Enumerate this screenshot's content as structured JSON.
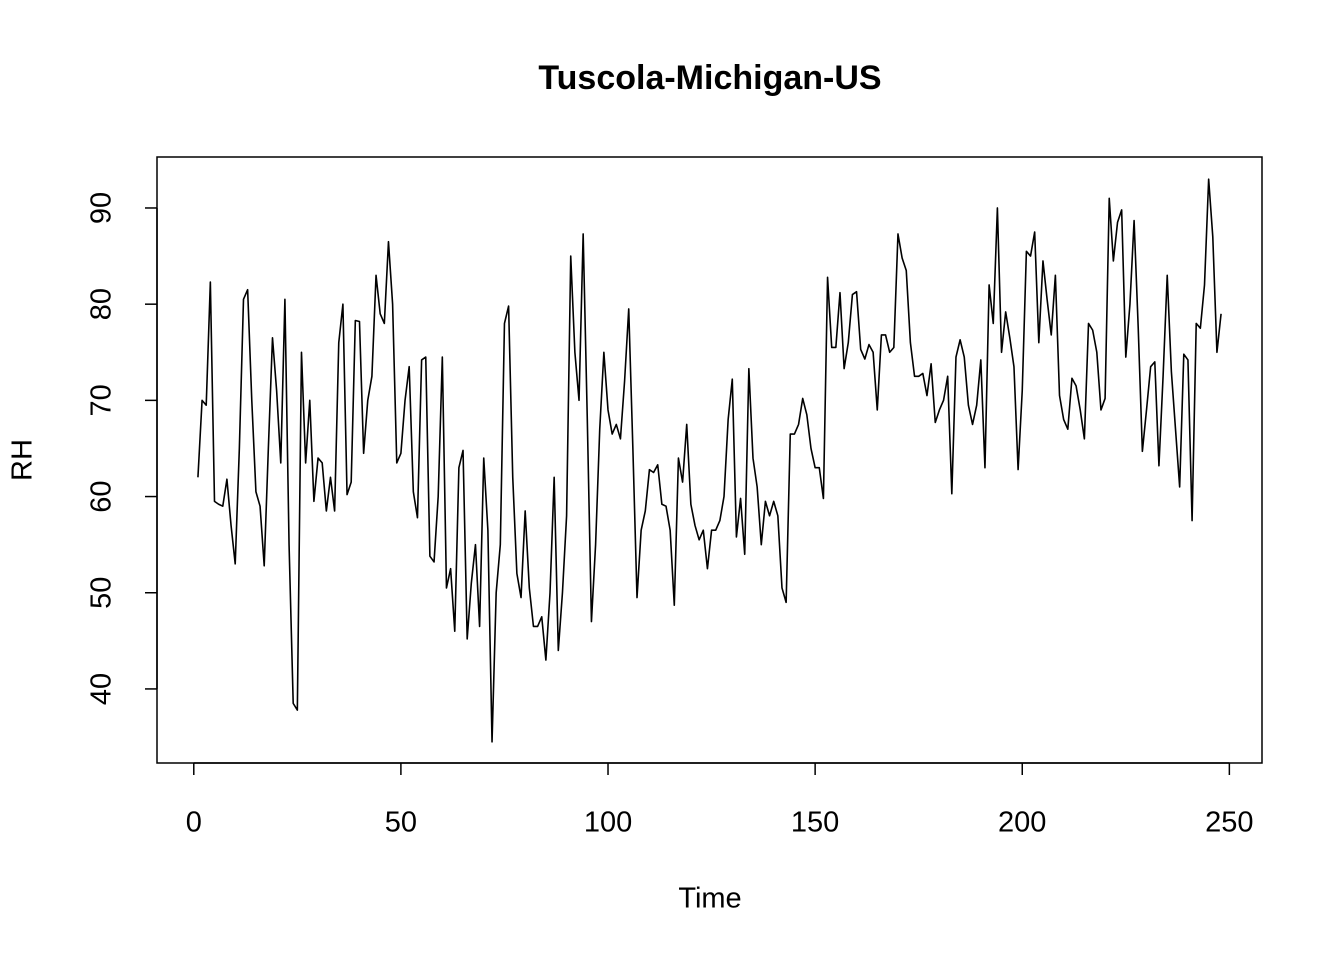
{
  "chart_data": {
    "type": "line",
    "title": "Tuscola-Michigan-US",
    "x_label": "Time",
    "y_label": "RH",
    "x": [
      1,
      2,
      3,
      4,
      5,
      6,
      7,
      8,
      9,
      10,
      11,
      12,
      13,
      14,
      15,
      16,
      17,
      18,
      19,
      20,
      21,
      22,
      23,
      24,
      25,
      26,
      27,
      28,
      29,
      30,
      31,
      32,
      33,
      34,
      35,
      36,
      37,
      38,
      39,
      40,
      41,
      42,
      43,
      44,
      45,
      46,
      47,
      48,
      49,
      50,
      51,
      52,
      53,
      54,
      55,
      56,
      57,
      58,
      59,
      60,
      61,
      62,
      63,
      64,
      65,
      66,
      67,
      68,
      69,
      70,
      71,
      72,
      73,
      74,
      75,
      76,
      77,
      78,
      79,
      80,
      81,
      82,
      83,
      84,
      85,
      86,
      87,
      88,
      89,
      90,
      91,
      92,
      93,
      94,
      95,
      96,
      97,
      98,
      99,
      100,
      101,
      102,
      103,
      104,
      105,
      106,
      107,
      108,
      109,
      110,
      111,
      112,
      113,
      114,
      115,
      116,
      117,
      118,
      119,
      120,
      121,
      122,
      123,
      124,
      125,
      126,
      127,
      128,
      129,
      130,
      131,
      132,
      133,
      134,
      135,
      136,
      137,
      138,
      139,
      140,
      141,
      142,
      143,
      144,
      145,
      146,
      147,
      148,
      149,
      150,
      151,
      152,
      153,
      154,
      155,
      156,
      157,
      158,
      159,
      160,
      161,
      162,
      163,
      164,
      165,
      166,
      167,
      168,
      169,
      170,
      171,
      172,
      173,
      174,
      175,
      176,
      177,
      178,
      179,
      180,
      181,
      182,
      183,
      184,
      185,
      186,
      187,
      188,
      189,
      190,
      191,
      192,
      193,
      194,
      195,
      196,
      197,
      198,
      199,
      200,
      201,
      202,
      203,
      204,
      205,
      206,
      207,
      208,
      209,
      210,
      211,
      212,
      213,
      214,
      215,
      216,
      217,
      218,
      219,
      220,
      221,
      222,
      223,
      224,
      225,
      226,
      227,
      228,
      229,
      230,
      231,
      232,
      233,
      234,
      235,
      236,
      237,
      238,
      239,
      240,
      241,
      242,
      243,
      244,
      245,
      246,
      247,
      248
    ],
    "values": [
      62,
      70,
      69.5,
      82.3,
      59.5,
      59.2,
      59,
      61.8,
      57,
      53,
      65,
      80.5,
      81.5,
      70,
      60.5,
      59,
      52.8,
      65,
      76.5,
      71,
      63.5,
      80.5,
      55,
      38.5,
      37.8,
      75,
      63.5,
      70,
      59.5,
      64,
      63.5,
      58.5,
      62,
      58.5,
      76,
      80,
      60.2,
      61.5,
      78.3,
      78.2,
      64.5,
      70,
      72.5,
      83,
      79,
      78,
      86.5,
      80,
      63.5,
      64.5,
      70,
      73.5,
      60.5,
      57.8,
      74.2,
      74.5,
      53.8,
      53.2,
      60,
      74.5,
      50.5,
      52.5,
      46,
      63,
      64.8,
      45.2,
      51,
      55,
      46.5,
      64,
      56.5,
      34.5,
      50,
      55,
      78,
      79.8,
      62,
      52,
      49.5,
      58.5,
      50.5,
      46.5,
      46.5,
      47.5,
      43,
      50,
      62,
      44,
      50,
      58,
      85,
      75,
      70,
      87.3,
      68,
      47,
      55,
      67,
      75,
      69,
      66.5,
      67.5,
      66,
      72,
      79.5,
      65,
      49.5,
      56.5,
      58.5,
      62.8,
      62.5,
      63.3,
      59.2,
      59,
      56.5,
      48.7,
      64,
      61.5,
      67.5,
      59.2,
      57,
      55.5,
      56.5,
      52.5,
      56.5,
      56.5,
      57.5,
      60,
      68,
      72.2,
      55.8,
      59.8,
      54,
      73.3,
      64,
      61,
      55,
      59.5,
      58,
      59.5,
      58,
      50.5,
      49,
      66.5,
      66.5,
      67.5,
      70.2,
      68.5,
      65,
      63,
      63,
      59.8,
      82.8,
      75.5,
      75.5,
      81.2,
      73.3,
      76,
      81,
      81.3,
      75.3,
      74.3,
      75.8,
      75,
      69,
      76.8,
      76.8,
      75,
      75.5,
      87.3,
      84.8,
      83.5,
      76,
      72.5,
      72.5,
      72.8,
      70.5,
      73.8,
      67.7,
      69,
      70,
      72.5,
      60.3,
      74.5,
      76.3,
      74.5,
      69.5,
      67.5,
      69.5,
      74.2,
      63,
      82,
      78,
      90,
      75,
      79.2,
      76.5,
      73.5,
      62.8,
      71,
      85.5,
      85,
      87.5,
      76,
      84.5,
      80.5,
      76.8,
      83,
      70.5,
      68,
      67,
      72.3,
      71.5,
      69,
      66,
      78,
      77.3,
      75,
      69,
      70.2,
      91,
      84.5,
      88.5,
      89.8,
      74.5,
      80,
      88.7,
      77.5,
      64.7,
      69,
      73.5,
      74,
      63.2,
      72.5,
      83,
      73,
      67,
      61,
      74.8,
      74.2,
      57.5,
      78,
      77.5,
      82,
      93,
      87,
      75,
      79
    ],
    "color": "#000000",
    "xlim": [
      -8.88,
      257.88
    ],
    "ylim": [
      32.3,
      95.3
    ],
    "xticks": [
      0,
      50,
      100,
      150,
      200,
      250
    ],
    "yticks": [
      40,
      50,
      60,
      70,
      80,
      90
    ]
  }
}
